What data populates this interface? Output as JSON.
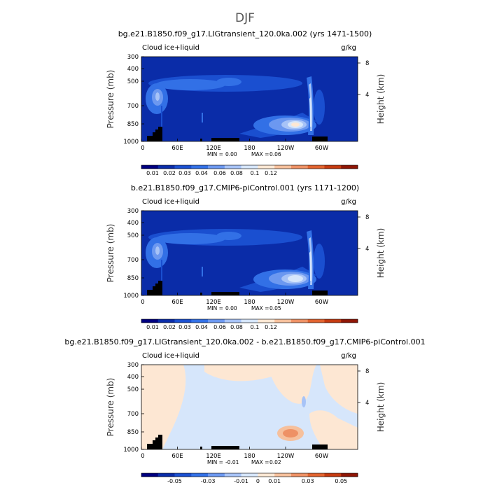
{
  "figure": {
    "main_title": "DJF",
    "panels": [
      {
        "title": "bg.e21.B1850.f09_g17.LIGtransient_120.0ka.002 (yrs 1471-1500)",
        "variable": "Cloud ice+liquid",
        "units": "g/kg",
        "min_label": "MIN = ",
        "min_value": "0.00",
        "max_label": "MAX = ",
        "max_value": "0.06",
        "colorbar_ticks": [
          "0.01",
          "0.02",
          "0.03",
          "0.04",
          "0.06",
          "0.08",
          "0.1",
          "0.12"
        ]
      },
      {
        "title": "b.e21.B1850.f09_g17.CMIP6-piControl.001 (yrs 1171-1200)",
        "variable": "Cloud ice+liquid",
        "units": "g/kg",
        "min_label": "MIN = ",
        "min_value": "0.00",
        "max_label": "MAX = ",
        "max_value": "0.05",
        "colorbar_ticks": [
          "0.01",
          "0.02",
          "0.03",
          "0.04",
          "0.06",
          "0.08",
          "0.1",
          "0.12"
        ]
      },
      {
        "title": "bg.e21.B1850.f09_g17.LIGtransient_120.0ka.002 - b.e21.B1850.f09_g17.CMIP6-piControl.001",
        "variable": "Cloud ice+liquid",
        "units": "g/kg",
        "min_label": "MIN = ",
        "min_value": "-0.01",
        "max_label": "MAX = ",
        "max_value": "0.02",
        "colorbar_ticks": [
          "-0.05",
          "-0.03",
          "-0.01",
          "0",
          "0.01",
          "0.03",
          "0.05"
        ]
      }
    ],
    "y_label": "Pressure  (mb)",
    "y2_label": "Height  (km)",
    "y_ticks": [
      "300",
      "400",
      "500",
      "700",
      "850",
      "1000"
    ],
    "y2_ticks": [
      "8",
      "4"
    ],
    "x_ticks": [
      "0",
      "60E",
      "120E",
      "180",
      "120W",
      "60W"
    ]
  },
  "colors": {
    "abs_scale": [
      "#00007f",
      "#0a2ca8",
      "#1a4fd0",
      "#3270e6",
      "#6c98f0",
      "#a7c3f7",
      "#d6e6fb",
      "#fde7d3",
      "#f6c09c",
      "#ee9165",
      "#e1632f",
      "#c43a10",
      "#8e1505"
    ],
    "diff_scale": [
      "#00007f",
      "#0a2ca8",
      "#1a4fd0",
      "#3270e6",
      "#6c98f0",
      "#a7c3f7",
      "#d6e6fb",
      "#fde7d3",
      "#f6c09c",
      "#ee9165",
      "#e1632f",
      "#c43a10",
      "#8e1505"
    ],
    "topography": "#000000"
  },
  "chart_data": [
    {
      "type": "heatmap",
      "title": "bg.e21.B1850.f09_g17.LIGtransient_120.0ka.002 (yrs 1471-1500)",
      "xlabel": "",
      "ylabel": "Pressure  (mb)",
      "y2label": "Height  (km)",
      "x_unit": "degrees longitude",
      "xlim": [
        0,
        360
      ],
      "ylim": [
        1000,
        300
      ],
      "y_scale": "log-pressure",
      "y2_ticks_km": [
        4,
        8
      ],
      "min": 0.0,
      "max": 0.06,
      "features": [
        {
          "lon": 235,
          "p": 850,
          "value": 0.06
        },
        {
          "lon": 20,
          "p": 650,
          "value": 0.02
        },
        {
          "lon": 280,
          "p": 750,
          "value": 0.04
        },
        {
          "lon": 100,
          "p": 450,
          "value": 0.01
        }
      ],
      "levels": [
        0.01,
        0.02,
        0.03,
        0.04,
        0.06,
        0.08,
        0.1,
        0.12
      ]
    },
    {
      "type": "heatmap",
      "title": "b.e21.B1850.f09_g17.CMIP6-piControl.001 (yrs 1171-1200)",
      "xlabel": "",
      "ylabel": "Pressure  (mb)",
      "y2label": "Height  (km)",
      "x_unit": "degrees longitude",
      "xlim": [
        0,
        360
      ],
      "ylim": [
        1000,
        300
      ],
      "y_scale": "log-pressure",
      "y2_ticks_km": [
        4,
        8
      ],
      "min": 0.0,
      "max": 0.05,
      "features": [
        {
          "lon": 245,
          "p": 850,
          "value": 0.04
        },
        {
          "lon": 20,
          "p": 680,
          "value": 0.02
        },
        {
          "lon": 280,
          "p": 750,
          "value": 0.04
        },
        {
          "lon": 100,
          "p": 480,
          "value": 0.01
        }
      ],
      "levels": [
        0.01,
        0.02,
        0.03,
        0.04,
        0.06,
        0.08,
        0.1,
        0.12
      ]
    },
    {
      "type": "heatmap",
      "title": "bg.e21.B1850.f09_g17.LIGtransient_120.0ka.002 - b.e21.B1850.f09_g17.CMIP6-piControl.001",
      "xlabel": "",
      "ylabel": "Pressure  (mb)",
      "y2label": "Height  (km)",
      "x_unit": "degrees longitude",
      "xlim": [
        0,
        360
      ],
      "ylim": [
        1000,
        300
      ],
      "y_scale": "log-pressure",
      "y2_ticks_km": [
        4,
        8
      ],
      "min": -0.01,
      "max": 0.02,
      "features": [
        {
          "lon": 255,
          "p": 830,
          "value": 0.02
        },
        {
          "lon": 160,
          "p": 800,
          "value": -0.005
        }
      ],
      "levels": [
        -0.05,
        -0.03,
        -0.01,
        0,
        0.01,
        0.03,
        0.05
      ]
    }
  ]
}
